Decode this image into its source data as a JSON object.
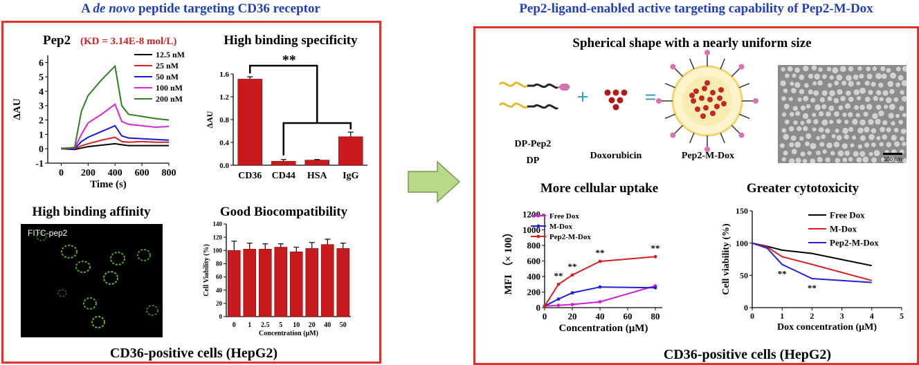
{
  "left_header": {
    "prefix": "A ",
    "italic": "de novo",
    "suffix": " peptide targeting CD36 receptor"
  },
  "right_header": "Pep2-ligand-enabled active targeting capability of Pep2-M-Dox",
  "left_footer": "CD36-positive cells (HepG2)",
  "right_footer": "CD36-positive cells (HepG2)",
  "micro_label": "FITC-pep2",
  "scheme": {
    "title": "Spherical shape with a nearly uniform size",
    "label_dp1": "DP-Pep2",
    "label_dp2": "DP",
    "label_dox": "Doxorubicin",
    "label_micelle": "Pep2-M-Dox",
    "plus": "+",
    "equals": "=",
    "scale_bar": "100 nm"
  },
  "colors": {
    "red": "#e0312b",
    "bar": "#c8191c",
    "blue_header": "#1f3fbf",
    "arrow_fill": "#b7d989",
    "arrow_stroke": "#7a9a4e"
  },
  "chart_data": [
    {
      "id": "spr",
      "type": "line",
      "title": "Pep2",
      "title_kd": "(KD = 3.14E-8 mol/L)",
      "xlabel": "Time (s)",
      "ylabel": "ΔAU",
      "xlim": [
        -100,
        800
      ],
      "ylim": [
        -1,
        6.5
      ],
      "xticks": [
        0,
        200,
        400,
        600,
        800
      ],
      "yticks": [
        -1,
        0,
        1,
        2,
        3,
        4,
        5,
        6
      ],
      "legend_position": "top-right",
      "series": [
        {
          "name": "12.5 nM",
          "color": "#000000",
          "x": [
            0,
            100,
            150,
            200,
            300,
            400,
            450,
            500,
            600,
            700,
            800
          ],
          "y": [
            0,
            -0.05,
            0.05,
            0.15,
            0.25,
            0.35,
            0.28,
            0.22,
            0.22,
            0.22,
            0.22
          ]
        },
        {
          "name": "25 nM",
          "color": "#d42020",
          "x": [
            0,
            100,
            150,
            200,
            300,
            400,
            450,
            500,
            600,
            700,
            800
          ],
          "y": [
            0,
            0,
            0.2,
            0.35,
            0.6,
            0.8,
            0.5,
            0.45,
            0.5,
            0.45,
            0.45
          ]
        },
        {
          "name": "50 nM",
          "color": "#1a1adb",
          "x": [
            0,
            100,
            150,
            200,
            300,
            400,
            450,
            500,
            600,
            700,
            800
          ],
          "y": [
            0.05,
            0,
            0.5,
            0.8,
            1.2,
            1.6,
            0.9,
            0.75,
            0.7,
            0.65,
            0.6
          ]
        },
        {
          "name": "100 nM",
          "color": "#e020e0",
          "x": [
            0,
            100,
            150,
            200,
            300,
            400,
            450,
            500,
            600,
            700,
            800
          ],
          "y": [
            0.05,
            0.05,
            1.0,
            1.8,
            2.4,
            3.1,
            1.9,
            1.7,
            1.6,
            1.5,
            1.55
          ]
        },
        {
          "name": "200 nM",
          "color": "#2f7f22",
          "x": [
            0,
            100,
            150,
            200,
            300,
            400,
            450,
            500,
            600,
            700,
            800
          ],
          "y": [
            0,
            0.1,
            2.6,
            3.7,
            4.8,
            5.75,
            3.0,
            2.4,
            2.25,
            2.1,
            2.0
          ]
        }
      ]
    },
    {
      "id": "specificity",
      "type": "bar",
      "title": "High binding specificity",
      "ylabel": "ΔAU",
      "categories": [
        "CD36",
        "CD44",
        "HSA",
        "IgG"
      ],
      "values": [
        1.51,
        0.07,
        0.09,
        0.5
      ],
      "errors": [
        0.04,
        0.03,
        0.01,
        0.08
      ],
      "ylim": [
        0,
        1.6
      ],
      "yticks": [
        0.0,
        0.4,
        0.8,
        1.2,
        1.6
      ],
      "annotation": "**"
    },
    {
      "id": "biocompat",
      "type": "bar",
      "title": "Good Biocompatibility",
      "ylabel": "Cell Viability (%)",
      "xlabel": "Concentration (μM)",
      "categories": [
        "0",
        "1",
        "2.5",
        "5",
        "10",
        "20",
        "40",
        "50"
      ],
      "values": [
        100,
        102,
        102,
        105,
        98,
        103,
        109,
        103
      ],
      "errors": [
        14,
        9,
        8,
        5,
        7,
        9,
        8,
        8
      ],
      "ylim": [
        0,
        140
      ],
      "yticks": [
        0,
        20,
        40,
        60,
        80,
        100,
        120,
        140
      ]
    },
    {
      "id": "uptake",
      "type": "line",
      "title": "More cellular uptake",
      "xlabel": "Concentration (μM)",
      "ylabel": "MFI （× 100）",
      "xlim": [
        0,
        85
      ],
      "ylim": [
        0,
        1200
      ],
      "xticks": [
        0,
        20,
        40,
        60,
        80
      ],
      "yticks": [
        0,
        200,
        400,
        600,
        800,
        1000,
        1200
      ],
      "legend_position": "top-left",
      "annotations": [
        {
          "x": 10,
          "text": "**"
        },
        {
          "x": 20,
          "text": "**"
        },
        {
          "x": 40,
          "text": "**"
        },
        {
          "x": 80,
          "text": "**"
        }
      ],
      "series": [
        {
          "name": "Free Dox",
          "color": "#d81bd8",
          "x": [
            0,
            10,
            20,
            40,
            80
          ],
          "y": [
            20,
            30,
            40,
            75,
            280
          ]
        },
        {
          "name": "M-Dox",
          "color": "#1f1fdd",
          "x": [
            0,
            10,
            20,
            40,
            80
          ],
          "y": [
            20,
            110,
            190,
            265,
            255
          ]
        },
        {
          "name": "Pep2-M-Dox",
          "color": "#d42020",
          "x": [
            0,
            10,
            20,
            40,
            80
          ],
          "y": [
            20,
            300,
            420,
            595,
            655
          ]
        }
      ]
    },
    {
      "id": "cytotox",
      "type": "line",
      "title": "Greater cytotoxicity",
      "xlabel": "Dox concentration (μM)",
      "ylabel": "Cell viability (%)",
      "xlim": [
        0,
        5
      ],
      "ylim": [
        0,
        150
      ],
      "xticks": [
        0,
        1,
        2,
        3,
        4,
        5
      ],
      "yticks": [
        0,
        50,
        100,
        150
      ],
      "legend_position": "top-right",
      "annotations": [
        {
          "x": 1,
          "text": "**"
        },
        {
          "x": 2,
          "text": "**"
        }
      ],
      "series": [
        {
          "name": "Free Dox",
          "color": "#000000",
          "x": [
            0,
            0.5,
            1,
            2,
            4
          ],
          "y": [
            100,
            95,
            89,
            84,
            65
          ]
        },
        {
          "name": "M-Dox",
          "color": "#d42020",
          "x": [
            0,
            0.5,
            1,
            2,
            4
          ],
          "y": [
            100,
            94,
            79,
            67,
            42
          ]
        },
        {
          "name": "Pep2-M-Dox",
          "color": "#1f1fdd",
          "x": [
            0,
            0.5,
            1,
            2,
            4
          ],
          "y": [
            100,
            92,
            67,
            45,
            39
          ]
        }
      ]
    }
  ]
}
